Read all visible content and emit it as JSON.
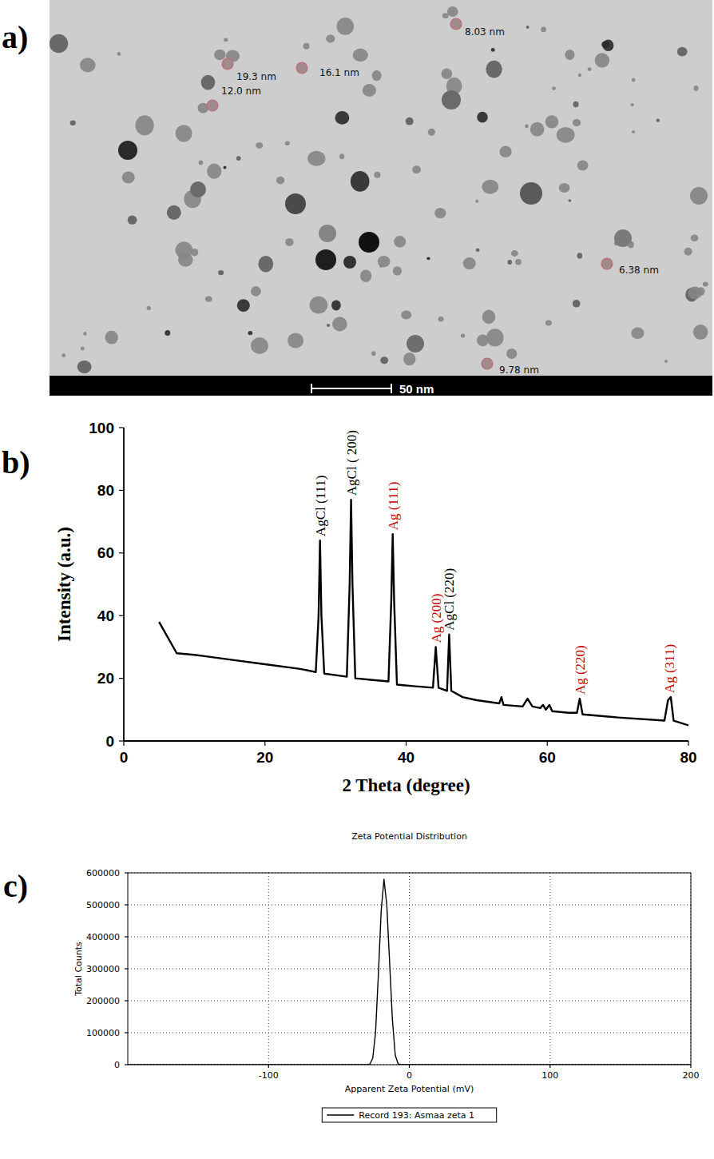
{
  "panel_labels": [
    "a)",
    "b)",
    "c)"
  ],
  "tem_image": {
    "annotations": [
      "19.3 nm",
      "16.1 nm",
      "12.0 nm",
      "8.03 nm",
      "6.38 nm",
      "9.78 nm"
    ],
    "scale_bar": "50 nm"
  },
  "chart_data": [
    {
      "type": "line",
      "xlabel": "2 Theta (degree)",
      "ylabel": "Intensity (a.u.)",
      "x": [
        5,
        7.5,
        10,
        15,
        20,
        25,
        27.2,
        27.6,
        27.8,
        28.0,
        28.4,
        30,
        31.6,
        32.0,
        32.2,
        32.4,
        32.8,
        35,
        37.5,
        37.9,
        38.1,
        38.3,
        38.7,
        41,
        43.8,
        44.2,
        44.6,
        45.8,
        46.1,
        46.4,
        48,
        50,
        53.2,
        53.5,
        53.8,
        56.5,
        57.2,
        57.9,
        59,
        59.4,
        59.8,
        60.3,
        60.7,
        63,
        64.2,
        64.6,
        65,
        70,
        76.6,
        77.1,
        77.5,
        77.9,
        80
      ],
      "values": [
        38,
        28,
        27.5,
        26,
        24.5,
        23,
        22,
        40,
        64,
        40,
        21.5,
        21,
        20.5,
        50,
        77,
        50,
        20,
        19.5,
        19,
        45,
        66,
        45,
        18,
        17.5,
        17,
        30,
        17,
        16,
        34,
        16,
        14,
        13,
        12,
        14,
        11.5,
        11,
        13.5,
        11,
        10.5,
        11.5,
        10,
        11.5,
        9.5,
        9,
        9,
        13.5,
        8.5,
        7.5,
        6.5,
        13,
        14,
        6.5,
        5
      ],
      "color": "#000000",
      "xlim": [
        0,
        80
      ],
      "ylim": [
        0,
        100
      ],
      "xticks": [
        0,
        20,
        40,
        60,
        80
      ],
      "yticks": [
        0,
        20,
        40,
        60,
        80,
        100
      ],
      "grid": false,
      "annotations": [
        {
          "text": "AgCl (111)",
          "x": 27.8,
          "y": 64,
          "color": "#000000"
        },
        {
          "text": "AgCl ( 200)",
          "x": 32.2,
          "y": 77,
          "color": "#000000"
        },
        {
          "text": "Ag (111)",
          "x": 38.1,
          "y": 66,
          "color": "#cc0000"
        },
        {
          "text": "Ag (200)",
          "x": 44.2,
          "y": 30,
          "color": "#cc0000"
        },
        {
          "text": "AgCl (220)",
          "x": 46.1,
          "y": 34,
          "color": "#000000"
        },
        {
          "text": "Ag (220)",
          "x": 64.6,
          "y": 13.5,
          "color": "#cc0000"
        },
        {
          "text": "Ag (311)",
          "x": 77.3,
          "y": 14,
          "color": "#cc0000"
        }
      ]
    },
    {
      "type": "line",
      "title": "Zeta Potential Distribution",
      "xlabel": "Apparent Zeta Potential (mV)",
      "ylabel": "Total Counts",
      "x": [
        -200,
        -30,
        -28,
        -26,
        -24,
        -22,
        -20,
        -18,
        -16,
        -14,
        -12,
        -10,
        -8,
        -6,
        200
      ],
      "series": [
        {
          "name": "Record 193: Asmaa zeta 1",
          "color": "#000000",
          "values": [
            0,
            0,
            2000,
            20000,
            100000,
            280000,
            480000,
            580000,
            500000,
            320000,
            140000,
            30000,
            3000,
            0,
            0
          ]
        }
      ],
      "xlim": [
        -200,
        200
      ],
      "ylim": [
        0,
        600000
      ],
      "xticks": [
        -100,
        0,
        100,
        200
      ],
      "yticks": [
        0,
        100000,
        200000,
        300000,
        400000,
        500000,
        600000
      ],
      "grid": true,
      "legend": "bottom"
    }
  ]
}
